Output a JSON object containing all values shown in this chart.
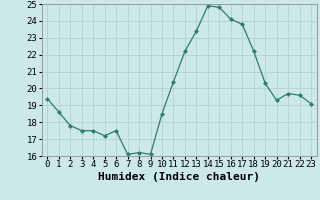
{
  "x": [
    0,
    1,
    2,
    3,
    4,
    5,
    6,
    7,
    8,
    9,
    10,
    11,
    12,
    13,
    14,
    15,
    16,
    17,
    18,
    19,
    20,
    21,
    22,
    23
  ],
  "y": [
    19.4,
    18.6,
    17.8,
    17.5,
    17.5,
    17.2,
    17.5,
    16.1,
    16.2,
    16.1,
    18.5,
    20.4,
    22.2,
    23.4,
    24.9,
    24.8,
    24.1,
    23.8,
    22.2,
    20.3,
    19.3,
    19.7,
    19.6,
    19.1
  ],
  "line_color": "#2e7d6e",
  "marker": "D",
  "marker_size": 2,
  "bg_color": "#cde8e8",
  "grid_color": "#b0cccc",
  "xlabel": "Humidex (Indice chaleur)",
  "xlim": [
    -0.5,
    23.5
  ],
  "ylim": [
    16,
    25
  ],
  "yticks": [
    16,
    17,
    18,
    19,
    20,
    21,
    22,
    23,
    24,
    25
  ],
  "xticks": [
    0,
    1,
    2,
    3,
    4,
    5,
    6,
    7,
    8,
    9,
    10,
    11,
    12,
    13,
    14,
    15,
    16,
    17,
    18,
    19,
    20,
    21,
    22,
    23
  ],
  "tick_label_fontsize": 6.5,
  "xlabel_fontsize": 8
}
